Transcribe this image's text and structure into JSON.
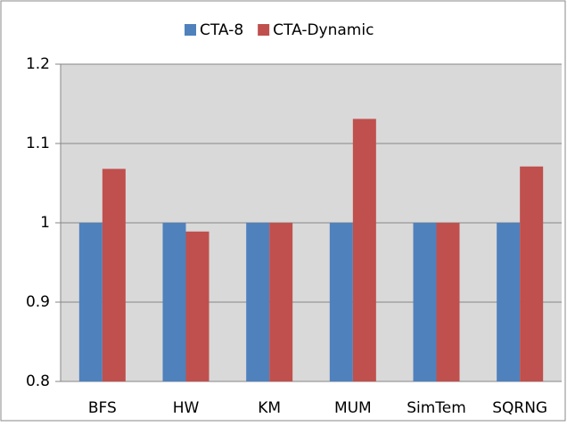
{
  "chart_data": {
    "type": "bar",
    "categories": [
      "BFS",
      "HW",
      "KM",
      "MUM",
      "SimTem",
      "SQRNG"
    ],
    "series": [
      {
        "name": "CTA-8",
        "color": "#4f81bd",
        "values": [
          1,
          1,
          1,
          1,
          1,
          1
        ]
      },
      {
        "name": "CTA-Dynamic",
        "color": "#c0504d",
        "values": [
          1.068,
          0.989,
          1,
          1.131,
          1,
          1.071
        ]
      }
    ],
    "ylim": [
      0.8,
      1.2
    ],
    "yticks": [
      0.8,
      0.9,
      1,
      1.1,
      1.2
    ],
    "grid": true,
    "legend": "top"
  }
}
